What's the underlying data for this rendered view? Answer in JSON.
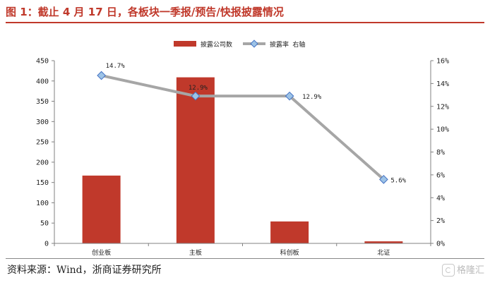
{
  "title": "图 1：截止 4 月 17 日，各板块一季报/预告/快报披露情况",
  "source": "资料来源：Wind，浙商证券研究所",
  "watermark": "格隆汇",
  "colors": {
    "bar": "#c0392b",
    "line": "#a6a6a6",
    "marker_fill": "#9dc3e6",
    "marker_stroke": "#4472c4",
    "title": "#c0392b",
    "axis": "#808080",
    "grid": "#d9d9d9"
  },
  "chart_data": {
    "type": "bar",
    "categories": [
      "创业板",
      "主板",
      "科创板",
      "北证"
    ],
    "series": [
      {
        "name": "披露公司数",
        "type": "bar",
        "axis": "left",
        "values": [
          167,
          409,
          54,
          5
        ]
      },
      {
        "name": "披露率 右轴",
        "type": "line",
        "axis": "right",
        "values": [
          14.7,
          12.9,
          12.9,
          5.6
        ],
        "labels": [
          "14.7%",
          "12.9%",
          "12.9%",
          "5.6%"
        ]
      }
    ],
    "left_axis": {
      "min": 0,
      "max": 450,
      "ticks": [
        0,
        50,
        100,
        150,
        200,
        250,
        300,
        350,
        400,
        450
      ],
      "tick_labels": [
        "0",
        "50",
        "100",
        "150",
        "200",
        "250",
        "300",
        "350",
        "400",
        "450"
      ]
    },
    "right_axis": {
      "min": 0,
      "max": 16,
      "ticks": [
        0,
        2,
        4,
        6,
        8,
        10,
        12,
        14,
        16
      ],
      "tick_labels": [
        "0%",
        "2%",
        "4%",
        "6%",
        "8%",
        "10%",
        "12%",
        "14%",
        "16%"
      ]
    },
    "legend_position": "top-center",
    "grid": false
  }
}
